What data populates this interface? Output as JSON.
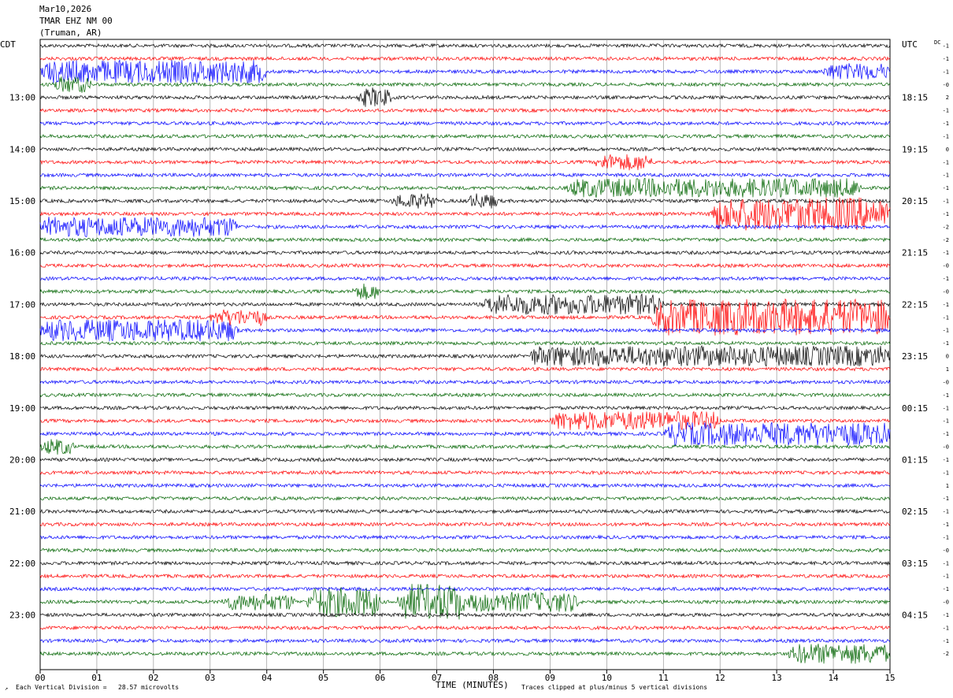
{
  "header": {
    "date": "Mar10,2026",
    "station": "TMAR EHZ NM 00",
    "location": "(Truman, AR)"
  },
  "left_tz": "CDT",
  "right_tz": "UTC",
  "dc_label": "DC",
  "footer": {
    "scale_note": "Each Vertical Division =   28.57 microvolts",
    "xlabel": "TIME (MINUTES)",
    "clip_note": "Traces clipped at plus/minus 5 vertical divisions"
  },
  "colors": {
    "trace_cycle": [
      "#000000",
      "#ff0000",
      "#0000ff",
      "#006400"
    ]
  },
  "chart_data": {
    "type": "line",
    "xlim": [
      0,
      15
    ],
    "x_ticks": [
      "00",
      "01",
      "02",
      "03",
      "04",
      "05",
      "06",
      "07",
      "08",
      "09",
      "10",
      "11",
      "12",
      "13",
      "14",
      "15"
    ],
    "trace_count": 48,
    "minutes_per_trace": 15,
    "hour_labels_left": [
      "13:00",
      "14:00",
      "15:00",
      "16:00",
      "17:00",
      "18:00",
      "19:00",
      "20:00",
      "21:00",
      "22:00",
      "23:00"
    ],
    "hour_labels_right": [
      "18:15",
      "19:15",
      "20:15",
      "21:15",
      "22:15",
      "23:15",
      "00:15",
      "01:15",
      "02:15",
      "03:15",
      "04:15"
    ],
    "dc_offsets": [
      "-1",
      "-1",
      "-1",
      "-0",
      "2",
      "-1",
      "-1",
      "-1",
      "0",
      "-1",
      "-1",
      "-1",
      "-1",
      "-1",
      "-2",
      "-2",
      "-1",
      "-0",
      "-1",
      "-0",
      "-1",
      "-1",
      "-1",
      "-1",
      "0",
      "1",
      "-0",
      "-1",
      "-1",
      "-1",
      "-1",
      "-0",
      "-1",
      "-1",
      "1",
      "-1",
      "-1",
      "-1",
      "-1",
      "-0",
      "-1",
      "-1",
      "-1",
      "-0",
      "-1",
      "-1",
      "-1",
      "-2"
    ],
    "events": [
      {
        "trace": 2,
        "start": 0.0,
        "end": 4.0,
        "amp": 3.0
      },
      {
        "trace": 2,
        "start": 13.8,
        "end": 15.0,
        "amp": 2.0
      },
      {
        "trace": 3,
        "start": 0.2,
        "end": 0.9,
        "amp": 2.0
      },
      {
        "trace": 4,
        "start": 5.6,
        "end": 6.2,
        "amp": 2.5
      },
      {
        "trace": 9,
        "start": 9.8,
        "end": 10.8,
        "amp": 2.0
      },
      {
        "trace": 11,
        "start": 9.3,
        "end": 14.5,
        "amp": 2.4
      },
      {
        "trace": 12,
        "start": 6.2,
        "end": 7.0,
        "amp": 1.8
      },
      {
        "trace": 12,
        "start": 7.5,
        "end": 8.1,
        "amp": 1.8
      },
      {
        "trace": 13,
        "start": 11.8,
        "end": 15.0,
        "amp": 4.5
      },
      {
        "trace": 14,
        "start": 0.0,
        "end": 3.5,
        "amp": 2.5
      },
      {
        "trace": 19,
        "start": 5.5,
        "end": 6.0,
        "amp": 2.0
      },
      {
        "trace": 20,
        "start": 7.8,
        "end": 11.0,
        "amp": 2.6
      },
      {
        "trace": 21,
        "start": 3.0,
        "end": 4.0,
        "amp": 2.0
      },
      {
        "trace": 21,
        "start": 10.8,
        "end": 15.0,
        "amp": 5.0
      },
      {
        "trace": 22,
        "start": 0.0,
        "end": 3.5,
        "amp": 2.8
      },
      {
        "trace": 24,
        "start": 8.6,
        "end": 15.0,
        "amp": 2.6
      },
      {
        "trace": 29,
        "start": 9.0,
        "end": 12.0,
        "amp": 2.4
      },
      {
        "trace": 30,
        "start": 11.0,
        "end": 15.0,
        "amp": 3.0
      },
      {
        "trace": 31,
        "start": 0.0,
        "end": 0.6,
        "amp": 2.0
      },
      {
        "trace": 43,
        "start": 3.2,
        "end": 4.5,
        "amp": 2.0
      },
      {
        "trace": 43,
        "start": 4.7,
        "end": 6.0,
        "amp": 4.0
      },
      {
        "trace": 43,
        "start": 6.3,
        "end": 7.5,
        "amp": 5.0
      },
      {
        "trace": 43,
        "start": 7.5,
        "end": 9.5,
        "amp": 2.5
      },
      {
        "trace": 47,
        "start": 13.2,
        "end": 15.0,
        "amp": 2.6
      }
    ]
  }
}
